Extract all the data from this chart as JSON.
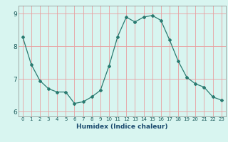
{
  "x": [
    0,
    1,
    2,
    3,
    4,
    5,
    6,
    7,
    8,
    9,
    10,
    11,
    12,
    13,
    14,
    15,
    16,
    17,
    18,
    19,
    20,
    21,
    22,
    23
  ],
  "y": [
    8.3,
    7.45,
    6.95,
    6.7,
    6.6,
    6.6,
    6.25,
    6.3,
    6.45,
    6.65,
    7.4,
    8.3,
    8.9,
    8.75,
    8.9,
    8.95,
    8.8,
    8.2,
    7.55,
    7.05,
    6.85,
    6.75,
    6.45,
    6.35
  ],
  "xlabel": "Humidex (Indice chaleur)",
  "ylim": [
    5.85,
    9.25
  ],
  "xlim": [
    -0.5,
    23.5
  ],
  "bg_color": "#d8f5f0",
  "line_color": "#2a7a70",
  "grid_color": "#e8a0a0",
  "yticks": [
    6,
    7,
    8,
    9
  ],
  "xticks": [
    0,
    1,
    2,
    3,
    4,
    5,
    6,
    7,
    8,
    9,
    10,
    11,
    12,
    13,
    14,
    15,
    16,
    17,
    18,
    19,
    20,
    21,
    22,
    23
  ]
}
